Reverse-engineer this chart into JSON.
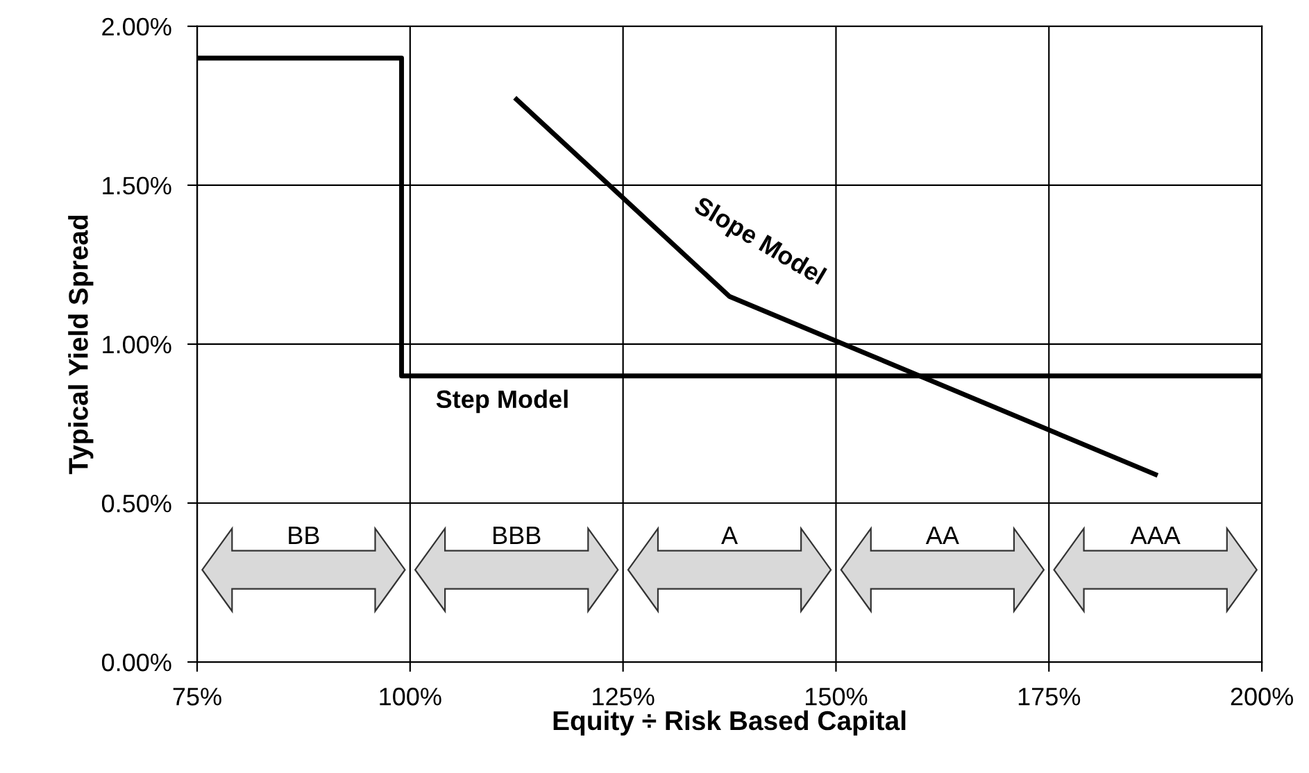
{
  "chart_data": {
    "type": "line",
    "xlabel": "Equity ÷ Risk Based Capital",
    "ylabel": "Typical Yield Spread",
    "xlim": [
      75,
      200
    ],
    "ylim": [
      0,
      2
    ],
    "xticks": [
      {
        "value": 75,
        "label": "75%"
      },
      {
        "value": 100,
        "label": "100%"
      },
      {
        "value": 125,
        "label": "125%"
      },
      {
        "value": 150,
        "label": "150%"
      },
      {
        "value": 175,
        "label": "175%"
      },
      {
        "value": 200,
        "label": "200%"
      }
    ],
    "yticks": [
      {
        "value": 0,
        "label": "0.00%"
      },
      {
        "value": 0.5,
        "label": "0.50%"
      },
      {
        "value": 1,
        "label": "1.00%"
      },
      {
        "value": 1.5,
        "label": "1.50%"
      },
      {
        "value": 2,
        "label": "2.00%"
      }
    ],
    "grid": true,
    "legend": false,
    "series": [
      {
        "name": "Step Model",
        "type": "step",
        "color": "#000000",
        "x": [
          75,
          99,
          200
        ],
        "values": [
          1.9,
          0.9,
          0.9
        ]
      },
      {
        "name": "Slope Model",
        "color": "#000000",
        "x": [
          112.5,
          137.5,
          187.5
        ],
        "values": [
          1.77,
          1.15,
          0.59
        ]
      }
    ],
    "annotations": [
      "BB",
      "BBB",
      "A",
      "AA",
      "AAA"
    ]
  }
}
